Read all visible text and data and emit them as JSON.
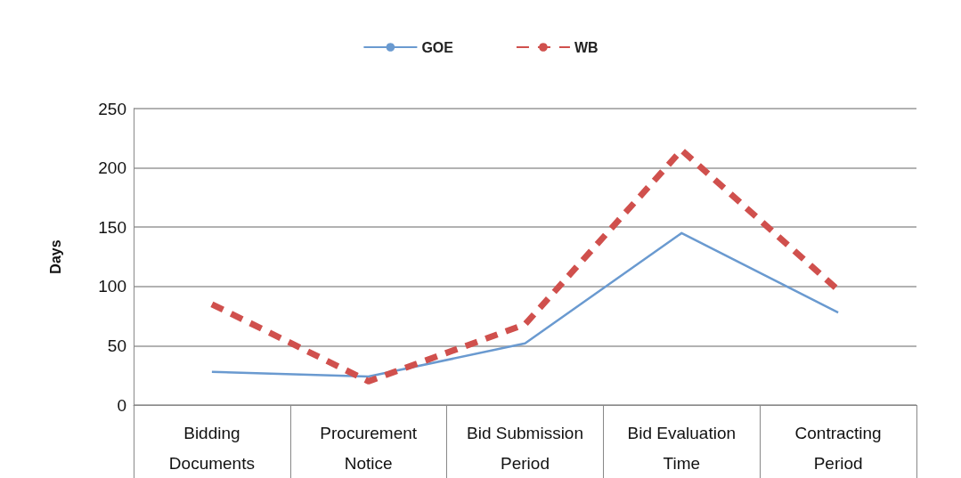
{
  "chart_data": {
    "type": "line",
    "ylabel": "Days",
    "categories": [
      "Bidding\nDocuments",
      "Procurement\nNotice",
      "Bid Submission\nPeriod",
      "Bid Evaluation\nTime",
      "Contracting\nPeriod"
    ],
    "series": [
      {
        "name": "GOE",
        "color": "#6a9ad0",
        "values": [
          28,
          24,
          52,
          145,
          78
        ]
      },
      {
        "name": "WB",
        "color": "#d0504d",
        "line_style": "dashed",
        "values": [
          85,
          20,
          68,
          215,
          97
        ]
      }
    ],
    "ylim": [
      0,
      250
    ],
    "yticks": [
      0,
      50,
      100,
      150,
      200,
      250
    ],
    "grid": "y",
    "legend": "top",
    "marker": "none"
  }
}
